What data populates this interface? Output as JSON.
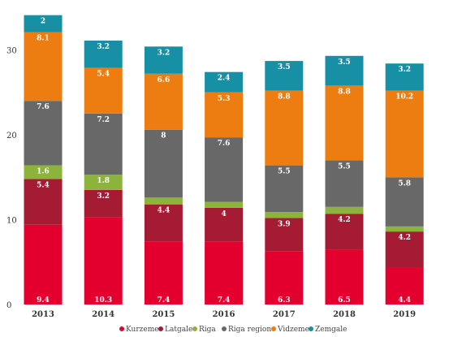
{
  "chart_data": {
    "type": "bar",
    "stacked": true,
    "categories": [
      "2013",
      "2014",
      "2015",
      "2016",
      "2017",
      "2018",
      "2019"
    ],
    "series": [
      {
        "name": "Kurzeme",
        "color": "#e3002e",
        "values": [
          9.4,
          10.3,
          7.4,
          7.4,
          6.3,
          6.5,
          4.4
        ],
        "labels": [
          "9.4",
          "10.3",
          "7.4",
          "7.4",
          "6.3",
          "6.5",
          "4.4"
        ]
      },
      {
        "name": "Latgale",
        "color": "#a51b34",
        "values": [
          5.4,
          3.2,
          4.4,
          4.0,
          3.9,
          4.2,
          4.2
        ],
        "labels": [
          "5.4",
          "3.2",
          "4.4",
          "4",
          "3.9",
          "4.2",
          "4.2"
        ]
      },
      {
        "name": "Riga",
        "color": "#8cb43c",
        "values": [
          1.6,
          1.8,
          0.8,
          0.7,
          0.7,
          0.8,
          0.6
        ],
        "labels": [
          "1.6",
          "1.8",
          "",
          "",
          "",
          "",
          ""
        ]
      },
      {
        "name": "Riga region",
        "color": "#686868",
        "values": [
          7.6,
          7.2,
          8.0,
          7.6,
          5.5,
          5.5,
          5.8
        ],
        "labels": [
          "7.6",
          "7.2",
          "8",
          "7.6",
          "5.5",
          "5.5",
          "5.8"
        ]
      },
      {
        "name": "Vidzeme",
        "color": "#ed7d10",
        "values": [
          8.1,
          5.4,
          6.6,
          5.3,
          8.8,
          8.8,
          10.2
        ],
        "labels": [
          "8.1",
          "5.4",
          "6.6",
          "5.3",
          "8.8",
          "8.8",
          "10.2"
        ]
      },
      {
        "name": "Zemgale",
        "color": "#178fa5",
        "values": [
          2.0,
          3.2,
          3.2,
          2.4,
          3.5,
          3.5,
          3.2
        ],
        "labels": [
          "2",
          "3.2",
          "3.2",
          "2.4",
          "3.5",
          "3.5",
          "3.2"
        ]
      }
    ],
    "yticks": [
      0,
      10,
      20,
      30
    ],
    "ylim": [
      0,
      34
    ],
    "grid": false,
    "legend": "bottom"
  }
}
